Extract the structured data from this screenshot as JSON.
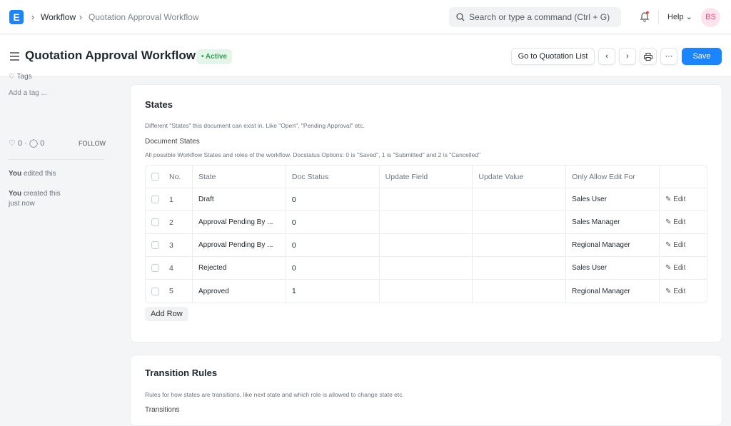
{
  "navbar": {
    "logo": "E",
    "breadcrumbs": [
      "Workflow",
      "Quotation Approval Workflow"
    ],
    "search_placeholder": "Search or type a command (Ctrl + G)",
    "help": "Help",
    "avatar": "BS"
  },
  "header": {
    "title": "Quotation Approval Workflow",
    "status": "Active",
    "go_to_list": "Go to Quotation List",
    "more": "···",
    "save": "Save"
  },
  "sidebar": {
    "tags": "Tags",
    "add_tag": "Add a tag ...",
    "likes": "0",
    "comments": "0",
    "follow": "FOLLOW",
    "activity": [
      {
        "who": "You",
        "what": "edited this"
      },
      {
        "who": "You",
        "what": "created this",
        "when": "just now"
      }
    ]
  },
  "states": {
    "title": "States",
    "description": "Different \"States\" this document can exist in. Like \"Open\", \"Pending Approval\" etc.",
    "field_label": "Document States",
    "field_help": "All possible Workflow States and roles of the workflow. Docstatus Options: 0 is \"Saved\", 1 is \"Submitted\" and 2 is \"Cancelled\"",
    "columns": [
      "No.",
      "State",
      "Doc Status",
      "Update Field",
      "Update Value",
      "Only Allow Edit For"
    ],
    "rows": [
      {
        "no": "1",
        "state": "Draft",
        "doc_status": "0",
        "update_field": "",
        "update_value": "",
        "allow": "Sales User",
        "edit": "Edit"
      },
      {
        "no": "2",
        "state": "Approval Pending By ...",
        "doc_status": "0",
        "update_field": "",
        "update_value": "",
        "allow": "Sales Manager",
        "edit": "Edit"
      },
      {
        "no": "3",
        "state": "Approval Pending By ...",
        "doc_status": "0",
        "update_field": "",
        "update_value": "",
        "allow": "Regional Manager",
        "edit": "Edit"
      },
      {
        "no": "4",
        "state": "Rejected",
        "doc_status": "0",
        "update_field": "",
        "update_value": "",
        "allow": "Sales User",
        "edit": "Edit"
      },
      {
        "no": "5",
        "state": "Approved",
        "doc_status": "1",
        "update_field": "",
        "update_value": "",
        "allow": "Regional Manager",
        "edit": "Edit"
      }
    ],
    "add_row": "Add Row"
  },
  "transitions": {
    "title": "Transition Rules",
    "description": "Rules for how states are transitions, like next state and which role is allowed to change state etc.",
    "field_label": "Transitions"
  }
}
